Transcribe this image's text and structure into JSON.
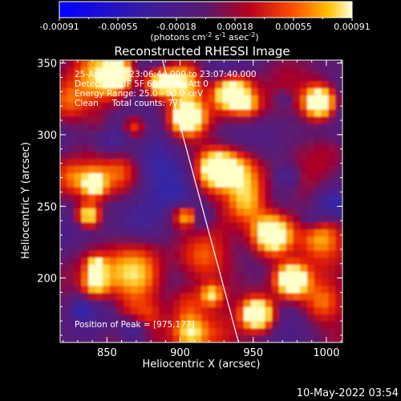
{
  "colorbar": {
    "ticks": [
      "-0.00091",
      "-0.00055",
      "-0.00018",
      "0.00018",
      "0.00055",
      "0.00091"
    ],
    "unit_main": "(photons cm",
    "unit_exp1": "-2",
    "unit_mid": " s",
    "unit_exp2": "-1",
    "unit_mid2": " asec",
    "unit_exp3": "-2",
    "unit_end": ")"
  },
  "annotations": {
    "time_range": "25-Apr-2012 23:06:44.000 to 23:07:40.000",
    "detectors": "Detectors: 3F 5F 6F 7F 8F, Att 0",
    "energy": "Energy Range: 25.0 - 50.0 keV",
    "clean": "Clean     Total counts: 775.",
    "peak": "Position of Peak = [975,177]"
  },
  "footer": {
    "timestamp": "10-May-2022 03:54"
  },
  "chart_data": {
    "type": "heatmap",
    "title": "Reconstructed RHESSI Image",
    "xlabel": "Heliocentric X (arcsec)",
    "ylabel": "Heliocentric Y (arcsec)",
    "xlim": [
      818,
      1011
    ],
    "ylim": [
      155,
      352
    ],
    "x_ticks": [
      850,
      900,
      950,
      1000
    ],
    "y_ticks": [
      200,
      250,
      300,
      350
    ],
    "colorbar_range": [
      -0.00091,
      0.00091
    ],
    "limb_line": {
      "x": [
        888,
        940
      ],
      "y": [
        352,
        155
      ]
    },
    "peak_position": [
      975,
      177
    ]
  }
}
